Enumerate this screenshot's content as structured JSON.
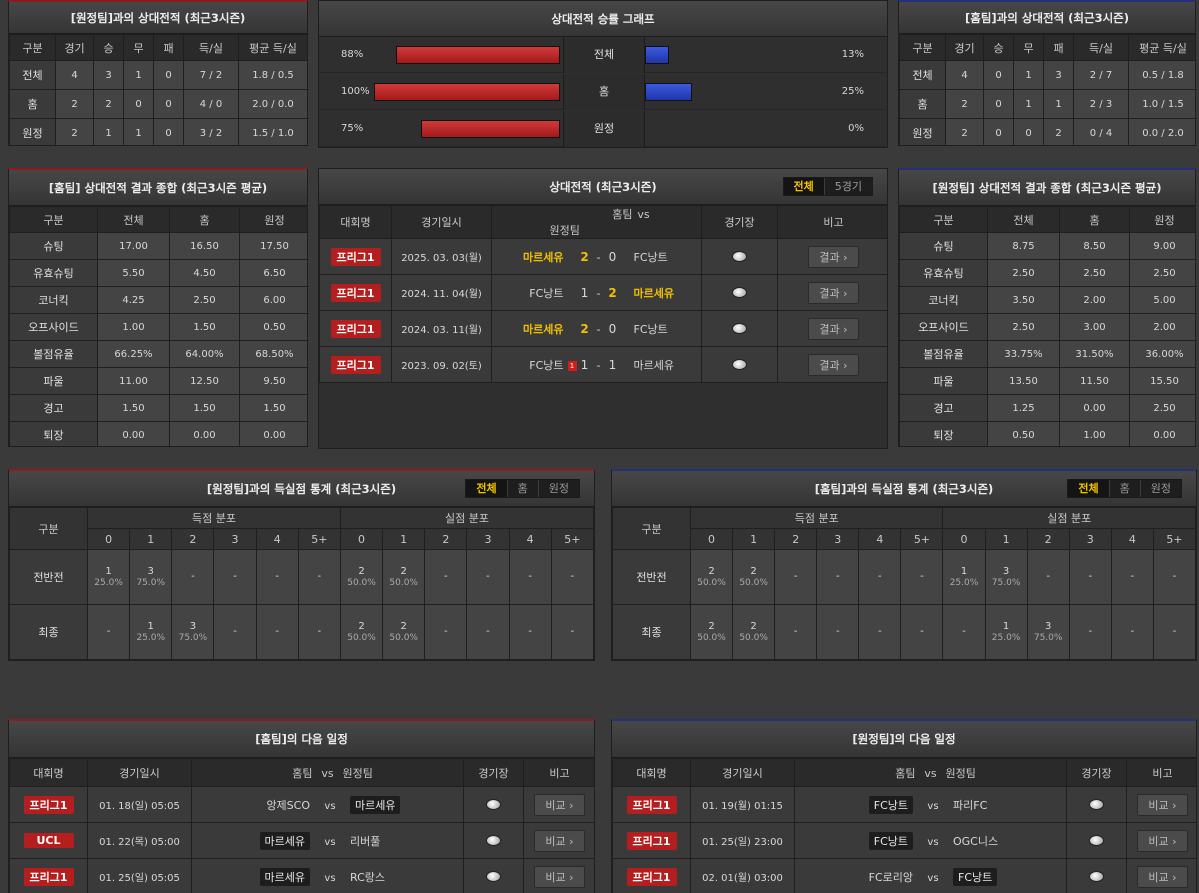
{
  "away_h2h": {
    "title": "[원정팀]과의 상대전적 (최근3시즌)",
    "headers": [
      "구분",
      "경기",
      "승",
      "무",
      "패",
      "득/실",
      "평균 득/실"
    ],
    "rows": [
      [
        "전체",
        "4",
        "3",
        "1",
        "0",
        "7 / 2",
        "1.8 / 0.5"
      ],
      [
        "홈",
        "2",
        "2",
        "0",
        "0",
        "4 / 0",
        "2.0 / 0.0"
      ],
      [
        "원정",
        "2",
        "1",
        "1",
        "0",
        "3 / 2",
        "1.5 / 1.0"
      ]
    ]
  },
  "graph": {
    "title": "상대전적 승률 그래프",
    "rows": [
      {
        "label": "전체",
        "left_pct": "88%",
        "left": 88,
        "right_pct": "13%",
        "right": 13
      },
      {
        "label": "홈",
        "left_pct": "100%",
        "left": 100,
        "right_pct": "25%",
        "right": 25
      },
      {
        "label": "원정",
        "left_pct": "75%",
        "left": 75,
        "right_pct": "0%",
        "right": 0
      }
    ]
  },
  "home_h2h": {
    "title": "[홈팀]과의 상대전적 (최근3시즌)",
    "headers": [
      "구분",
      "경기",
      "승",
      "무",
      "패",
      "득/실",
      "평균 득/실"
    ],
    "rows": [
      [
        "전체",
        "4",
        "0",
        "1",
        "3",
        "2 / 7",
        "0.5 / 1.8"
      ],
      [
        "홈",
        "2",
        "0",
        "1",
        "1",
        "2 / 3",
        "1.0 / 1.5"
      ],
      [
        "원정",
        "2",
        "0",
        "0",
        "2",
        "0 / 4",
        "0.0 / 2.0"
      ]
    ]
  },
  "home_summary": {
    "title": "[홈팀] 상대전적 결과 종합 (최근3시즌 평균)",
    "headers": [
      "구분",
      "전체",
      "홈",
      "원정"
    ],
    "rows": [
      [
        "슈팅",
        "17.00",
        "16.50",
        "17.50"
      ],
      [
        "유효슈팅",
        "5.50",
        "4.50",
        "6.50"
      ],
      [
        "코너킥",
        "4.25",
        "2.50",
        "6.00"
      ],
      [
        "오프사이드",
        "1.00",
        "1.50",
        "0.50"
      ],
      [
        "볼점유율",
        "66.25%",
        "64.00%",
        "68.50%"
      ],
      [
        "파울",
        "11.00",
        "12.50",
        "9.50"
      ],
      [
        "경고",
        "1.50",
        "1.50",
        "1.50"
      ],
      [
        "퇴장",
        "0.00",
        "0.00",
        "0.00"
      ]
    ]
  },
  "away_summary": {
    "title": "[원정팀] 상대전적 결과 종합 (최근3시즌 평균)",
    "headers": [
      "구분",
      "전체",
      "홈",
      "원정"
    ],
    "rows": [
      [
        "슈팅",
        "8.75",
        "8.50",
        "9.00"
      ],
      [
        "유효슈팅",
        "2.50",
        "2.50",
        "2.50"
      ],
      [
        "코너킥",
        "3.50",
        "2.00",
        "5.00"
      ],
      [
        "오프사이드",
        "2.50",
        "3.00",
        "2.00"
      ],
      [
        "볼점유율",
        "33.75%",
        "31.50%",
        "36.00%"
      ],
      [
        "파울",
        "13.50",
        "11.50",
        "15.50"
      ],
      [
        "경고",
        "1.25",
        "0.00",
        "2.50"
      ],
      [
        "퇴장",
        "0.50",
        "1.00",
        "0.00"
      ]
    ]
  },
  "matches": {
    "title": "상대전적 (최근3시즌)",
    "tabs": [
      "전체",
      "5경기"
    ],
    "headers": {
      "comp": "대회명",
      "date": "경기일시",
      "home": "홈팀",
      "vs": "vs",
      "away": "원정팀",
      "venue": "경기장",
      "note": "비고"
    },
    "rows": [
      {
        "comp": "프리그1",
        "date": "2025. 03. 03(월)",
        "home": "마르세유",
        "hs": "2",
        "as": "0",
        "away": "FC낭트",
        "win": "home",
        "home_red": "",
        "btn": "결과 ›"
      },
      {
        "comp": "프리그1",
        "date": "2024. 11. 04(월)",
        "home": "FC낭트",
        "hs": "1",
        "as": "2",
        "away": "마르세유",
        "win": "away",
        "home_red": "",
        "btn": "결과 ›"
      },
      {
        "comp": "프리그1",
        "date": "2024. 03. 11(월)",
        "home": "마르세유",
        "hs": "2",
        "as": "0",
        "away": "FC낭트",
        "win": "home",
        "home_red": "",
        "btn": "결과 ›"
      },
      {
        "comp": "프리그1",
        "date": "2023. 09. 02(토)",
        "home": "FC낭트",
        "hs": "1",
        "as": "1",
        "away": "마르세유",
        "win": "",
        "home_red": "1",
        "btn": "결과 ›"
      }
    ]
  },
  "goal_stats_left": {
    "title": "[원정팀]과의 득실점 통계 (최근3시즌)",
    "tabs": [
      "전체",
      "홈",
      "원정"
    ],
    "col_label": "구분",
    "scored_label": "득점 분포",
    "conceded_label": "실점 분포",
    "cols": [
      "0",
      "1",
      "2",
      "3",
      "4",
      "5+"
    ],
    "rows": [
      {
        "label": "전반전",
        "scored": [
          [
            "1",
            "25.0%"
          ],
          [
            "3",
            "75.0%"
          ],
          [
            "-",
            ""
          ],
          [
            "-",
            ""
          ],
          [
            "-",
            ""
          ],
          [
            "-",
            ""
          ]
        ],
        "conceded": [
          [
            "2",
            "50.0%"
          ],
          [
            "2",
            "50.0%"
          ],
          [
            "-",
            ""
          ],
          [
            "-",
            ""
          ],
          [
            "-",
            ""
          ],
          [
            "-",
            ""
          ]
        ]
      },
      {
        "label": "최종",
        "scored": [
          [
            "-",
            ""
          ],
          [
            "1",
            "25.0%"
          ],
          [
            "3",
            "75.0%"
          ],
          [
            "-",
            ""
          ],
          [
            "-",
            ""
          ],
          [
            "-",
            ""
          ]
        ],
        "conceded": [
          [
            "2",
            "50.0%"
          ],
          [
            "2",
            "50.0%"
          ],
          [
            "-",
            ""
          ],
          [
            "-",
            ""
          ],
          [
            "-",
            ""
          ],
          [
            "-",
            ""
          ]
        ]
      }
    ]
  },
  "goal_stats_right": {
    "title": "[홈팀]과의 득실점 통계 (최근3시즌)",
    "tabs": [
      "전체",
      "홈",
      "원정"
    ],
    "col_label": "구분",
    "scored_label": "득점 분포",
    "conceded_label": "실점 분포",
    "cols": [
      "0",
      "1",
      "2",
      "3",
      "4",
      "5+"
    ],
    "rows": [
      {
        "label": "전반전",
        "scored": [
          [
            "2",
            "50.0%"
          ],
          [
            "2",
            "50.0%"
          ],
          [
            "-",
            ""
          ],
          [
            "-",
            ""
          ],
          [
            "-",
            ""
          ],
          [
            "-",
            ""
          ]
        ],
        "conceded": [
          [
            "1",
            "25.0%"
          ],
          [
            "3",
            "75.0%"
          ],
          [
            "-",
            ""
          ],
          [
            "-",
            ""
          ],
          [
            "-",
            ""
          ],
          [
            "-",
            ""
          ]
        ]
      },
      {
        "label": "최종",
        "scored": [
          [
            "2",
            "50.0%"
          ],
          [
            "2",
            "50.0%"
          ],
          [
            "-",
            ""
          ],
          [
            "-",
            ""
          ],
          [
            "-",
            ""
          ],
          [
            "-",
            ""
          ]
        ],
        "conceded": [
          [
            "-",
            ""
          ],
          [
            "1",
            "25.0%"
          ],
          [
            "3",
            "75.0%"
          ],
          [
            "-",
            ""
          ],
          [
            "-",
            ""
          ],
          [
            "-",
            ""
          ]
        ]
      }
    ]
  },
  "next_home": {
    "title": "[홈팀]의 다음 일정",
    "headers": {
      "comp": "대회명",
      "date": "경기일시",
      "home": "홈팀",
      "vs": "vs",
      "away": "원정팀",
      "venue": "경기장",
      "note": "비고"
    },
    "rows": [
      {
        "comp": "프리그1",
        "date": "01. 18(일) 05:05",
        "home": "앙제SCO",
        "away": "마르세유",
        "box": "away",
        "btn": "비교 ›"
      },
      {
        "comp": "UCL",
        "date": "01. 22(목) 05:00",
        "home": "마르세유",
        "away": "리버풀",
        "box": "home",
        "btn": "비교 ›"
      },
      {
        "comp": "프리그1",
        "date": "01. 25(일) 05:05",
        "home": "마르세유",
        "away": "RC랑스",
        "box": "home",
        "btn": "비교 ›"
      }
    ]
  },
  "next_away": {
    "title": "[원정팀]의 다음 일정",
    "headers": {
      "comp": "대회명",
      "date": "경기일시",
      "home": "홈팀",
      "vs": "vs",
      "away": "원정팀",
      "venue": "경기장",
      "note": "비고"
    },
    "rows": [
      {
        "comp": "프리그1",
        "date": "01. 19(월) 01:15",
        "home": "FC낭트",
        "away": "파리FC",
        "box": "home",
        "btn": "비교 ›"
      },
      {
        "comp": "프리그1",
        "date": "01. 25(일) 23:00",
        "home": "FC낭트",
        "away": "OGC니스",
        "box": "home",
        "btn": "비교 ›"
      },
      {
        "comp": "프리그1",
        "date": "02. 01(월) 03:00",
        "home": "FC로리앙",
        "away": "FC낭트",
        "box": "away",
        "btn": "비교 ›"
      }
    ]
  }
}
